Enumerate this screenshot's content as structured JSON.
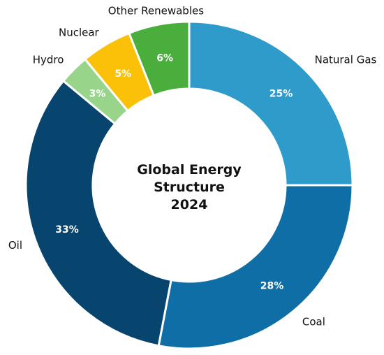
{
  "chart_data": {
    "type": "pie",
    "variant": "donut",
    "title_lines": [
      "Global Energy",
      "Structure",
      "2024"
    ],
    "start_direction": "top",
    "direction": "clockwise",
    "slices": [
      {
        "label": "Natural Gas",
        "value": 25,
        "pct_label": "25%",
        "color": "#2e9bcb"
      },
      {
        "label": "Coal",
        "value": 28,
        "pct_label": "28%",
        "color": "#0f6ea6"
      },
      {
        "label": "Oil",
        "value": 33,
        "pct_label": "33%",
        "color": "#08456e"
      },
      {
        "label": "Hydro",
        "value": 3,
        "pct_label": "3%",
        "color": "#98d58a"
      },
      {
        "label": "Nuclear",
        "value": 5,
        "pct_label": "5%",
        "color": "#fbc108"
      },
      {
        "label": "Other Renewables",
        "value": 6,
        "pct_label": "6%",
        "color": "#4aae3d"
      }
    ]
  }
}
